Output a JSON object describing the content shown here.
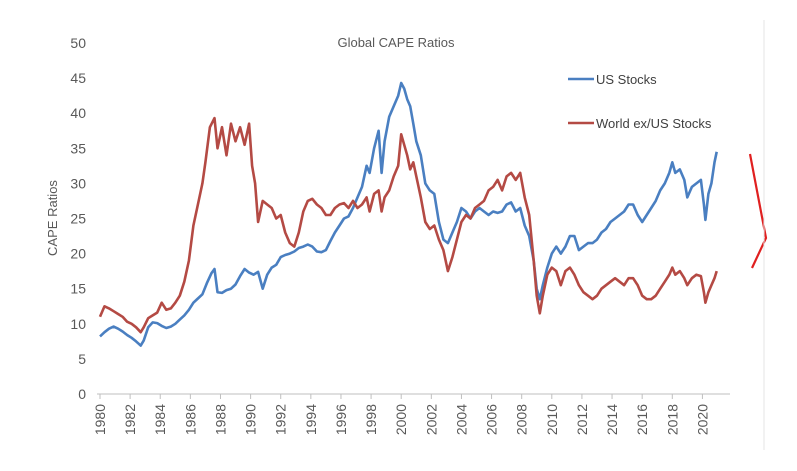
{
  "chart_data": {
    "type": "line",
    "title": "Global CAPE Ratios",
    "xlabel": "",
    "ylabel": "CAPE Ratios",
    "ylim": [
      0,
      50
    ],
    "xlim": [
      1980,
      2021.5
    ],
    "yticks": [
      "0",
      "5",
      "10",
      "15",
      "20",
      "25",
      "30",
      "35",
      "40",
      "45",
      "50"
    ],
    "xticks": [
      "1980",
      "1982",
      "1984",
      "1986",
      "1988",
      "1990",
      "1992",
      "1994",
      "1996",
      "1998",
      "2000",
      "2002",
      "2004",
      "2006",
      "2008",
      "2010",
      "2012",
      "2014",
      "2016",
      "2018",
      "2020"
    ],
    "grid": false,
    "legend_position": "top-right",
    "series": [
      {
        "name": "US Stocks",
        "color": "#4a7fc1",
        "points": [
          [
            1980.0,
            8.2
          ],
          [
            1980.3,
            8.8
          ],
          [
            1980.6,
            9.3
          ],
          [
            1980.9,
            9.6
          ],
          [
            1981.2,
            9.3
          ],
          [
            1981.5,
            8.9
          ],
          [
            1981.8,
            8.4
          ],
          [
            1982.1,
            8.0
          ],
          [
            1982.4,
            7.5
          ],
          [
            1982.7,
            6.9
          ],
          [
            1982.9,
            7.6
          ],
          [
            1983.2,
            9.5
          ],
          [
            1983.5,
            10.2
          ],
          [
            1983.8,
            10.1
          ],
          [
            1984.1,
            9.7
          ],
          [
            1984.4,
            9.4
          ],
          [
            1984.7,
            9.6
          ],
          [
            1985.0,
            10.0
          ],
          [
            1985.3,
            10.6
          ],
          [
            1985.6,
            11.2
          ],
          [
            1985.9,
            12.0
          ],
          [
            1986.2,
            13.0
          ],
          [
            1986.5,
            13.6
          ],
          [
            1986.8,
            14.2
          ],
          [
            1987.1,
            15.8
          ],
          [
            1987.4,
            17.2
          ],
          [
            1987.6,
            17.8
          ],
          [
            1987.8,
            14.5
          ],
          [
            1988.1,
            14.4
          ],
          [
            1988.4,
            14.8
          ],
          [
            1988.7,
            15.0
          ],
          [
            1989.0,
            15.6
          ],
          [
            1989.3,
            16.8
          ],
          [
            1989.6,
            17.8
          ],
          [
            1989.9,
            17.3
          ],
          [
            1990.2,
            17.0
          ],
          [
            1990.5,
            17.4
          ],
          [
            1990.8,
            15.0
          ],
          [
            1991.1,
            17.0
          ],
          [
            1991.4,
            18.0
          ],
          [
            1991.7,
            18.4
          ],
          [
            1992.0,
            19.5
          ],
          [
            1992.3,
            19.8
          ],
          [
            1992.6,
            20.0
          ],
          [
            1992.9,
            20.3
          ],
          [
            1993.2,
            20.8
          ],
          [
            1993.5,
            21.0
          ],
          [
            1993.8,
            21.3
          ],
          [
            1994.1,
            21.0
          ],
          [
            1994.4,
            20.3
          ],
          [
            1994.7,
            20.2
          ],
          [
            1995.0,
            20.5
          ],
          [
            1995.3,
            21.8
          ],
          [
            1995.6,
            23.0
          ],
          [
            1995.9,
            24.0
          ],
          [
            1996.2,
            25.0
          ],
          [
            1996.5,
            25.3
          ],
          [
            1996.8,
            26.5
          ],
          [
            1997.1,
            28.0
          ],
          [
            1997.4,
            29.5
          ],
          [
            1997.7,
            32.5
          ],
          [
            1997.9,
            31.5
          ],
          [
            1998.2,
            35.0
          ],
          [
            1998.5,
            37.5
          ],
          [
            1998.7,
            31.5
          ],
          [
            1998.9,
            36.0
          ],
          [
            1999.2,
            39.5
          ],
          [
            1999.5,
            41.0
          ],
          [
            1999.8,
            42.5
          ],
          [
            2000.0,
            44.3
          ],
          [
            2000.2,
            43.5
          ],
          [
            2000.4,
            42.0
          ],
          [
            2000.6,
            41.0
          ],
          [
            2000.8,
            38.5
          ],
          [
            2001.0,
            36.0
          ],
          [
            2001.3,
            34.0
          ],
          [
            2001.6,
            30.0
          ],
          [
            2001.9,
            29.0
          ],
          [
            2002.2,
            28.5
          ],
          [
            2002.5,
            24.5
          ],
          [
            2002.8,
            22.0
          ],
          [
            2003.1,
            21.5
          ],
          [
            2003.4,
            23.0
          ],
          [
            2003.7,
            24.5
          ],
          [
            2004.0,
            26.5
          ],
          [
            2004.3,
            26.0
          ],
          [
            2004.6,
            25.0
          ],
          [
            2004.9,
            26.0
          ],
          [
            2005.2,
            26.5
          ],
          [
            2005.5,
            26.0
          ],
          [
            2005.8,
            25.5
          ],
          [
            2006.1,
            26.0
          ],
          [
            2006.4,
            25.8
          ],
          [
            2006.7,
            26.0
          ],
          [
            2007.0,
            27.0
          ],
          [
            2007.3,
            27.3
          ],
          [
            2007.6,
            26.0
          ],
          [
            2007.9,
            26.5
          ],
          [
            2008.2,
            24.0
          ],
          [
            2008.5,
            22.5
          ],
          [
            2008.8,
            19.0
          ],
          [
            2009.0,
            15.0
          ],
          [
            2009.2,
            13.5
          ],
          [
            2009.4,
            15.5
          ],
          [
            2009.7,
            18.0
          ],
          [
            2010.0,
            20.0
          ],
          [
            2010.3,
            21.0
          ],
          [
            2010.6,
            20.0
          ],
          [
            2010.9,
            21.0
          ],
          [
            2011.2,
            22.5
          ],
          [
            2011.5,
            22.5
          ],
          [
            2011.8,
            20.5
          ],
          [
            2012.1,
            21.0
          ],
          [
            2012.4,
            21.5
          ],
          [
            2012.7,
            21.5
          ],
          [
            2013.0,
            22.0
          ],
          [
            2013.3,
            23.0
          ],
          [
            2013.6,
            23.5
          ],
          [
            2013.9,
            24.5
          ],
          [
            2014.2,
            25.0
          ],
          [
            2014.5,
            25.5
          ],
          [
            2014.8,
            26.0
          ],
          [
            2015.1,
            27.0
          ],
          [
            2015.4,
            27.0
          ],
          [
            2015.7,
            25.5
          ],
          [
            2016.0,
            24.5
          ],
          [
            2016.3,
            25.5
          ],
          [
            2016.6,
            26.5
          ],
          [
            2016.9,
            27.5
          ],
          [
            2017.2,
            29.0
          ],
          [
            2017.5,
            30.0
          ],
          [
            2017.8,
            31.5
          ],
          [
            2018.0,
            33.0
          ],
          [
            2018.2,
            31.5
          ],
          [
            2018.5,
            32.0
          ],
          [
            2018.8,
            30.5
          ],
          [
            2019.0,
            28.0
          ],
          [
            2019.3,
            29.5
          ],
          [
            2019.6,
            30.0
          ],
          [
            2019.9,
            30.5
          ],
          [
            2020.1,
            27.0
          ],
          [
            2020.2,
            24.8
          ],
          [
            2020.4,
            28.5
          ],
          [
            2020.6,
            30.0
          ],
          [
            2020.8,
            33.0
          ],
          [
            2020.95,
            34.5
          ]
        ]
      },
      {
        "name": "World ex/US Stocks",
        "color": "#b44a44",
        "points": [
          [
            1980.0,
            11.0
          ],
          [
            1980.3,
            12.5
          ],
          [
            1980.6,
            12.2
          ],
          [
            1980.9,
            11.8
          ],
          [
            1981.2,
            11.4
          ],
          [
            1981.5,
            11.0
          ],
          [
            1981.8,
            10.3
          ],
          [
            1982.1,
            10.0
          ],
          [
            1982.4,
            9.5
          ],
          [
            1982.7,
            8.8
          ],
          [
            1982.9,
            9.5
          ],
          [
            1983.2,
            10.8
          ],
          [
            1983.5,
            11.2
          ],
          [
            1983.8,
            11.6
          ],
          [
            1984.1,
            13.0
          ],
          [
            1984.4,
            12.0
          ],
          [
            1984.7,
            12.2
          ],
          [
            1985.0,
            13.0
          ],
          [
            1985.3,
            14.0
          ],
          [
            1985.6,
            16.0
          ],
          [
            1985.9,
            19.0
          ],
          [
            1986.2,
            24.0
          ],
          [
            1986.5,
            27.0
          ],
          [
            1986.8,
            30.0
          ],
          [
            1987.0,
            33.0
          ],
          [
            1987.3,
            38.0
          ],
          [
            1987.6,
            39.3
          ],
          [
            1987.8,
            35.0
          ],
          [
            1988.1,
            38.0
          ],
          [
            1988.4,
            34.0
          ],
          [
            1988.7,
            38.5
          ],
          [
            1989.0,
            36.0
          ],
          [
            1989.3,
            38.0
          ],
          [
            1989.6,
            35.5
          ],
          [
            1989.9,
            38.5
          ],
          [
            1990.1,
            32.5
          ],
          [
            1990.3,
            30.0
          ],
          [
            1990.5,
            24.5
          ],
          [
            1990.8,
            27.5
          ],
          [
            1991.1,
            27.0
          ],
          [
            1991.4,
            26.5
          ],
          [
            1991.7,
            25.0
          ],
          [
            1992.0,
            25.5
          ],
          [
            1992.3,
            23.0
          ],
          [
            1992.6,
            21.5
          ],
          [
            1992.9,
            21.0
          ],
          [
            1993.2,
            23.0
          ],
          [
            1993.5,
            26.0
          ],
          [
            1993.8,
            27.5
          ],
          [
            1994.1,
            27.8
          ],
          [
            1994.4,
            27.0
          ],
          [
            1994.7,
            26.5
          ],
          [
            1995.0,
            25.5
          ],
          [
            1995.3,
            25.5
          ],
          [
            1995.6,
            26.5
          ],
          [
            1995.9,
            27.0
          ],
          [
            1996.2,
            27.2
          ],
          [
            1996.5,
            26.5
          ],
          [
            1996.8,
            27.5
          ],
          [
            1997.1,
            26.5
          ],
          [
            1997.4,
            27.0
          ],
          [
            1997.7,
            28.0
          ],
          [
            1997.9,
            26.0
          ],
          [
            1998.2,
            28.5
          ],
          [
            1998.5,
            29.0
          ],
          [
            1998.7,
            26.0
          ],
          [
            1998.9,
            28.0
          ],
          [
            1999.2,
            29.0
          ],
          [
            1999.5,
            31.0
          ],
          [
            1999.8,
            32.5
          ],
          [
            2000.0,
            37.0
          ],
          [
            2000.2,
            35.5
          ],
          [
            2000.4,
            34.0
          ],
          [
            2000.6,
            32.0
          ],
          [
            2000.8,
            33.0
          ],
          [
            2001.0,
            31.0
          ],
          [
            2001.3,
            28.0
          ],
          [
            2001.6,
            24.5
          ],
          [
            2001.9,
            23.5
          ],
          [
            2002.2,
            24.0
          ],
          [
            2002.5,
            22.0
          ],
          [
            2002.8,
            20.5
          ],
          [
            2003.1,
            17.5
          ],
          [
            2003.4,
            19.5
          ],
          [
            2003.7,
            22.0
          ],
          [
            2004.0,
            24.5
          ],
          [
            2004.3,
            25.5
          ],
          [
            2004.6,
            25.0
          ],
          [
            2004.9,
            26.5
          ],
          [
            2005.2,
            27.0
          ],
          [
            2005.5,
            27.5
          ],
          [
            2005.8,
            29.0
          ],
          [
            2006.1,
            29.5
          ],
          [
            2006.4,
            30.5
          ],
          [
            2006.7,
            29.0
          ],
          [
            2007.0,
            31.0
          ],
          [
            2007.3,
            31.5
          ],
          [
            2007.6,
            30.5
          ],
          [
            2007.9,
            31.5
          ],
          [
            2008.2,
            28.0
          ],
          [
            2008.5,
            25.5
          ],
          [
            2008.8,
            19.0
          ],
          [
            2009.0,
            14.0
          ],
          [
            2009.2,
            11.5
          ],
          [
            2009.4,
            14.0
          ],
          [
            2009.7,
            17.0
          ],
          [
            2010.0,
            18.0
          ],
          [
            2010.3,
            17.5
          ],
          [
            2010.6,
            15.5
          ],
          [
            2010.9,
            17.5
          ],
          [
            2011.2,
            18.0
          ],
          [
            2011.5,
            17.0
          ],
          [
            2011.8,
            15.5
          ],
          [
            2012.1,
            14.5
          ],
          [
            2012.4,
            14.0
          ],
          [
            2012.7,
            13.5
          ],
          [
            2013.0,
            14.0
          ],
          [
            2013.3,
            15.0
          ],
          [
            2013.6,
            15.5
          ],
          [
            2013.9,
            16.0
          ],
          [
            2014.2,
            16.5
          ],
          [
            2014.5,
            16.0
          ],
          [
            2014.8,
            15.5
          ],
          [
            2015.1,
            16.5
          ],
          [
            2015.4,
            16.5
          ],
          [
            2015.7,
            15.5
          ],
          [
            2016.0,
            14.0
          ],
          [
            2016.3,
            13.5
          ],
          [
            2016.6,
            13.5
          ],
          [
            2016.9,
            14.0
          ],
          [
            2017.2,
            15.0
          ],
          [
            2017.5,
            16.0
          ],
          [
            2017.8,
            17.0
          ],
          [
            2018.0,
            18.0
          ],
          [
            2018.2,
            17.0
          ],
          [
            2018.5,
            17.5
          ],
          [
            2018.8,
            16.5
          ],
          [
            2019.0,
            15.5
          ],
          [
            2019.3,
            16.5
          ],
          [
            2019.6,
            17.0
          ],
          [
            2019.9,
            16.8
          ],
          [
            2020.1,
            14.5
          ],
          [
            2020.2,
            13.0
          ],
          [
            2020.4,
            14.5
          ],
          [
            2020.6,
            15.5
          ],
          [
            2020.8,
            16.5
          ],
          [
            2020.95,
            17.5
          ]
        ]
      }
    ]
  }
}
